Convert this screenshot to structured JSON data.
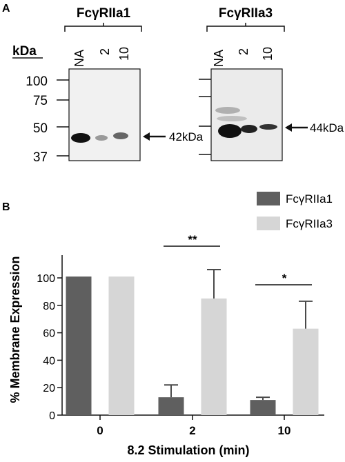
{
  "panel_a": {
    "label": "A",
    "kda_label": "kDa",
    "blots": [
      {
        "title": "FcγRIIa1",
        "lanes": [
          "NA",
          "2",
          "10"
        ],
        "arrow_label": "42kDa"
      },
      {
        "title": "FcγRIIa3",
        "lanes": [
          "NA",
          "2",
          "10"
        ],
        "arrow_label": "44kDa"
      }
    ],
    "mw_markers": [
      "100",
      "75",
      "50",
      "37"
    ]
  },
  "panel_b": {
    "label": "B"
  },
  "chart_data": {
    "type": "bar",
    "categories": [
      "0",
      "2",
      "10"
    ],
    "series": [
      {
        "name": "FcγRIIa1",
        "color": "#5f5f5f",
        "values": [
          101,
          13,
          11
        ],
        "errors": [
          0,
          9,
          2
        ]
      },
      {
        "name": "FcγRIIa3",
        "color": "#d6d6d6",
        "values": [
          101,
          85,
          63
        ],
        "errors": [
          0,
          21,
          20
        ]
      }
    ],
    "ylim": [
      0,
      110
    ],
    "yticks": [
      "0",
      "20",
      "40",
      "60",
      "80",
      "100"
    ],
    "ylabel": "% Membrane Expression",
    "xlabel": "8.2 Stimulation (min)",
    "legend_position": "top-right",
    "significance": [
      {
        "category": "2",
        "label": "**"
      },
      {
        "category": "10",
        "label": "*"
      }
    ]
  }
}
